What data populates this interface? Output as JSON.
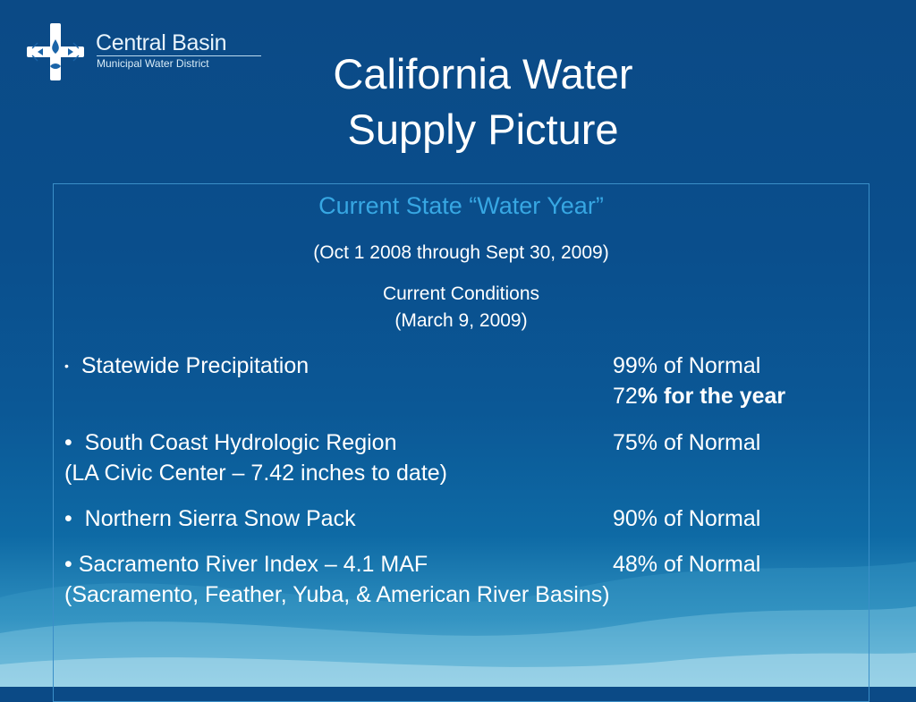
{
  "logo": {
    "name": "Central Basin",
    "subtitle": "Municipal Water District"
  },
  "title": {
    "line1": "California Water",
    "line2": "Supply Picture"
  },
  "panel": {
    "heading": "Current State “Water Year”",
    "period": "(Oct 1 2008 through Sept 30, 2009)",
    "conditions_label": "Current Conditions",
    "conditions_date": "(March 9, 2009)",
    "items": [
      {
        "bullet": "•",
        "label": "Statewide Precipitation",
        "value": "99% of Normal",
        "extra_value_number": "72",
        "extra_value_bold": "% for the year"
      },
      {
        "bullet": "•",
        "label": "South Coast Hydrologic Region",
        "value": "75% of Normal",
        "note": "(LA Civic Center – 7.42 inches to date)"
      },
      {
        "bullet": "•",
        "label": "Northern Sierra Snow Pack",
        "value": "90% of Normal"
      },
      {
        "bullet": "•",
        "label": "Sacramento River Index – 4.1 MAF",
        "value": "48% of Normal",
        "note": "(Sacramento, Feather, Yuba, & American River Basins)"
      }
    ]
  },
  "colors": {
    "background_top": "#0b4a86",
    "background_bottom": "#7cc3df",
    "heading_accent": "#37a7e3",
    "panel_border": "#3b8fc8",
    "text": "#ffffff"
  }
}
